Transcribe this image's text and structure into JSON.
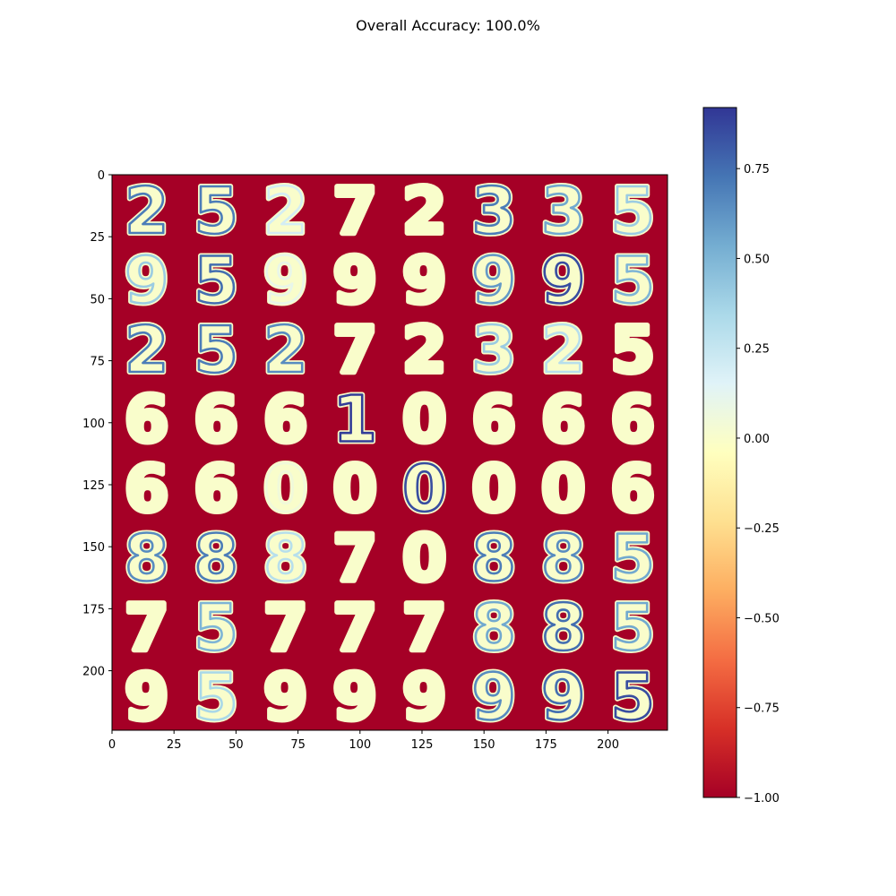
{
  "chart_data": {
    "type": "heatmap",
    "title": "Overall Accuracy: 100.0%",
    "xlabel": "",
    "ylabel": "",
    "xlim": [
      0,
      224
    ],
    "ylim": [
      224,
      0
    ],
    "x_ticks": [
      0,
      25,
      50,
      75,
      100,
      125,
      150,
      175,
      200
    ],
    "y_ticks": [
      0,
      25,
      50,
      75,
      100,
      125,
      150,
      175,
      200
    ],
    "grid": "8x8 tiles of 28x28 digit activation maps",
    "background_value": -1.0,
    "digit_grid": [
      [
        "2",
        "5",
        "2",
        "7",
        "2",
        "3",
        "3",
        "5"
      ],
      [
        "9",
        "5",
        "9",
        "9",
        "9",
        "9",
        "9",
        "5"
      ],
      [
        "2",
        "5",
        "2",
        "7",
        "2",
        "3",
        "2",
        "5"
      ],
      [
        "6",
        "6",
        "6",
        "1",
        "0",
        "6",
        "6",
        "6"
      ],
      [
        "6",
        "6",
        "0",
        "0",
        "0",
        "0",
        "0",
        "6"
      ],
      [
        "8",
        "8",
        "8",
        "7",
        "0",
        "8",
        "8",
        "5"
      ],
      [
        "7",
        "5",
        "7",
        "7",
        "7",
        "8",
        "8",
        "5"
      ],
      [
        "9",
        "5",
        "9",
        "9",
        "9",
        "9",
        "9",
        "5"
      ]
    ],
    "activation_grid": [
      [
        0.7,
        0.7,
        0.2,
        0.0,
        0.0,
        0.7,
        0.55,
        0.4
      ],
      [
        0.4,
        0.75,
        0.1,
        0.0,
        0.0,
        0.6,
        0.85,
        0.5
      ],
      [
        0.7,
        0.7,
        0.65,
        0.0,
        0.0,
        0.4,
        0.3,
        0.0
      ],
      [
        0.0,
        0.0,
        0.0,
        0.9,
        0.0,
        0.0,
        0.0,
        0.0
      ],
      [
        0.0,
        0.0,
        0.05,
        0.0,
        0.85,
        0.0,
        0.0,
        0.0
      ],
      [
        0.65,
        0.7,
        0.3,
        0.0,
        0.0,
        0.7,
        0.65,
        0.55
      ],
      [
        0.0,
        0.5,
        0.0,
        0.0,
        0.0,
        0.55,
        0.75,
        0.55
      ],
      [
        0.0,
        0.35,
        0.0,
        0.0,
        0.0,
        0.65,
        0.75,
        0.85
      ]
    ],
    "colorbar": {
      "colormap": "RdYlBu",
      "range": [
        -1.0,
        0.92
      ],
      "ticks": [
        {
          "value": 0.75,
          "label": "0.75"
        },
        {
          "value": 0.5,
          "label": "0.50"
        },
        {
          "value": 0.25,
          "label": "0.25"
        },
        {
          "value": 0.0,
          "label": "0.00"
        },
        {
          "value": -0.25,
          "label": "−0.25"
        },
        {
          "value": -0.5,
          "label": "−0.50"
        },
        {
          "value": -0.75,
          "label": "−0.75"
        },
        {
          "value": -1.0,
          "label": "−1.00"
        }
      ]
    }
  }
}
